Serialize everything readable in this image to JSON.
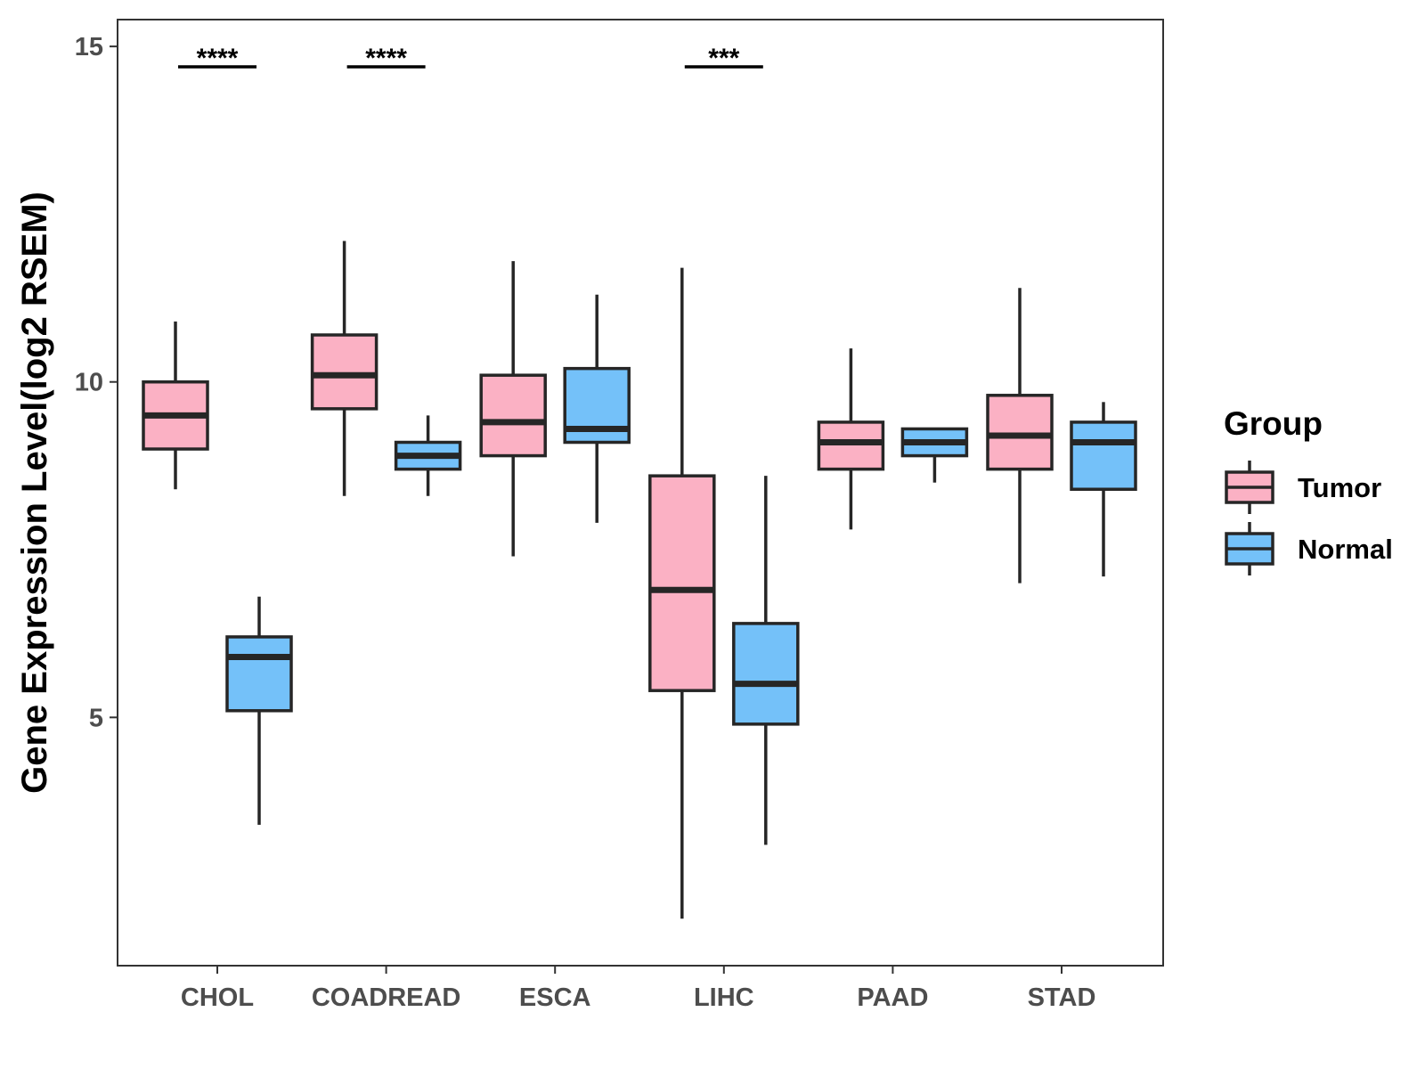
{
  "chart_data": {
    "type": "boxplot",
    "title": "",
    "xlabel": "",
    "ylabel": "Gene Expression Level(log2 RSEM)",
    "ylim": [
      1.3,
      15.4
    ],
    "yticks": [
      5,
      10,
      15
    ],
    "grid": false,
    "legend_position": "right",
    "legend": {
      "title": "Group",
      "entries": [
        {
          "name": "Tumor",
          "color": "#FBB1C4"
        },
        {
          "name": "Normal",
          "color": "#74C1F9"
        }
      ]
    },
    "categories": [
      "CHOL",
      "COADREAD",
      "ESCA",
      "LIHC",
      "PAAD",
      "STAD"
    ],
    "series": [
      {
        "name": "Tumor",
        "color": "#FBB1C4",
        "boxes": [
          {
            "whisker_low": 8.4,
            "q1": 9.0,
            "median": 9.5,
            "q3": 10.0,
            "whisker_high": 10.9
          },
          {
            "whisker_low": 8.3,
            "q1": 9.6,
            "median": 10.1,
            "q3": 10.7,
            "whisker_high": 12.1
          },
          {
            "whisker_low": 7.4,
            "q1": 8.9,
            "median": 9.4,
            "q3": 10.1,
            "whisker_high": 11.8
          },
          {
            "whisker_low": 2.0,
            "q1": 5.4,
            "median": 6.9,
            "q3": 8.6,
            "whisker_high": 11.7
          },
          {
            "whisker_low": 7.8,
            "q1": 8.7,
            "median": 9.1,
            "q3": 9.4,
            "whisker_high": 10.5
          },
          {
            "whisker_low": 7.0,
            "q1": 8.7,
            "median": 9.2,
            "q3": 9.8,
            "whisker_high": 11.4
          }
        ]
      },
      {
        "name": "Normal",
        "color": "#74C1F9",
        "boxes": [
          {
            "whisker_low": 3.4,
            "q1": 5.1,
            "median": 5.9,
            "q3": 6.2,
            "whisker_high": 6.8
          },
          {
            "whisker_low": 8.3,
            "q1": 8.7,
            "median": 8.9,
            "q3": 9.1,
            "whisker_high": 9.5
          },
          {
            "whisker_low": 7.9,
            "q1": 9.1,
            "median": 9.3,
            "q3": 10.2,
            "whisker_high": 11.3
          },
          {
            "whisker_low": 3.1,
            "q1": 4.9,
            "median": 5.5,
            "q3": 6.4,
            "whisker_high": 8.6
          },
          {
            "whisker_low": 8.5,
            "q1": 8.9,
            "median": 9.1,
            "q3": 9.3,
            "whisker_high": 9.3
          },
          {
            "whisker_low": 7.1,
            "q1": 8.4,
            "median": 9.1,
            "q3": 9.4,
            "whisker_high": 9.7
          }
        ]
      }
    ],
    "annotations": [
      {
        "category": "CHOL",
        "label": "****"
      },
      {
        "category": "COADREAD",
        "label": "****"
      },
      {
        "category": "LIHC",
        "label": "***"
      }
    ]
  }
}
